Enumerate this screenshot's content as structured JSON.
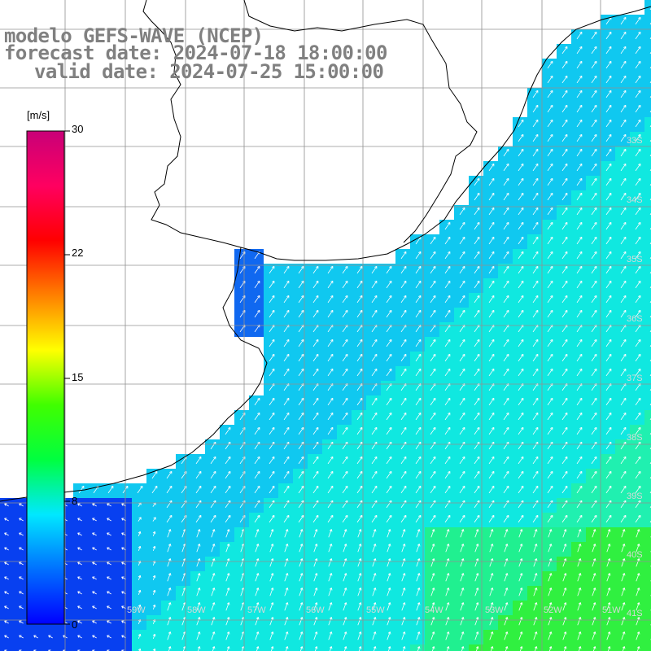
{
  "title": {
    "line1": "modelo GEFS-WAVE (NCEP)",
    "line2": "forecast date: 2024-07-18 18:00:00",
    "line3": "valid date: 2024-07-25 15:00:00"
  },
  "colorbar": {
    "unit": "[m/s]",
    "ticks": [
      "30",
      "22",
      "15",
      "8",
      "0"
    ],
    "range": [
      0,
      30
    ],
    "gradient": [
      "#0000ff",
      "#0070ff",
      "#00e8ff",
      "#00ff40",
      "#40ff00",
      "#ffff00",
      "#ff8000",
      "#ff0000",
      "#ff0060",
      "#c80078"
    ]
  },
  "graticule": {
    "lat_labels": [
      "33S",
      "34S",
      "35S",
      "36S",
      "37S",
      "38S",
      "39S",
      "40S",
      "41S"
    ],
    "lon_labels": [
      "59W",
      "58W",
      "57W",
      "56W",
      "55W",
      "54W",
      "53W",
      "52W",
      "51W"
    ],
    "grid_color": "#909090"
  },
  "colors": {
    "land": "#ffffff",
    "coast": "#000000",
    "arrow": "#ffffff",
    "text": "#808080"
  }
}
